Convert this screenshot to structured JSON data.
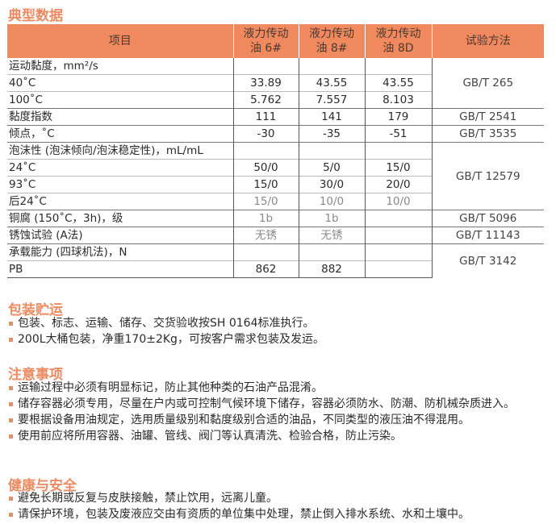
{
  "title": "典型数据",
  "table": {
    "headers": [
      "项目",
      "液力传动油 6#",
      "液力传动油 8#",
      "液力传动油 8D",
      "试验方法"
    ],
    "rows": [
      {
        "item": "运动黏度，mm²/s",
        "v": [
          "",
          "",
          ""
        ]
      },
      {
        "item": "40˚C",
        "v": [
          "33.89",
          "43.55",
          "43.55"
        ]
      },
      {
        "item": "100˚C",
        "v": [
          "5.762",
          "7.557",
          "8.103"
        ]
      },
      {
        "item": "黏度指数",
        "v": [
          "111",
          "141",
          "179"
        ]
      },
      {
        "item": "倾点，˚C",
        "v": [
          "-30",
          "-35",
          "-51"
        ]
      },
      {
        "item": "泡沫性 (泡沫倾向/泡沫稳定性)，mL/mL",
        "v": [
          "",
          "",
          ""
        ]
      },
      {
        "item": "24˚C",
        "v": [
          "50/0",
          "5/0",
          "15/0"
        ]
      },
      {
        "item": "93˚C",
        "v": [
          "15/0",
          "30/0",
          "20/0"
        ]
      },
      {
        "item": "后24˚C",
        "v": [
          "15/0",
          "10/0",
          "10/0"
        ]
      },
      {
        "item": "铜腐 (150˚C，3h)，级",
        "v": [
          "1b",
          "1b",
          ""
        ]
      },
      {
        "item": "锈蚀试验 (A法)",
        "v": [
          "无锈",
          "无锈",
          ""
        ]
      },
      {
        "item": "承载能力 (四球机法)，N",
        "v": [
          "",
          "",
          ""
        ]
      },
      {
        "item": "PB",
        "v": [
          "862",
          "882",
          ""
        ]
      }
    ],
    "methods": [
      "GB/T 265",
      "GB/T 2541",
      "GB/T 3535",
      "GB/T 12579",
      "GB/T 5096",
      "GB/T 11143",
      "GB/T 3142"
    ]
  },
  "sections": [
    {
      "title": "包装贮运",
      "items": [
        "包装、标志、运输、储存、交货验收按SH 0164标准执行。",
        "200L大桶包装，净重170±2Kg，可按客户需求包装及发运。"
      ]
    },
    {
      "title": "注意事项",
      "items": [
        "运输过程中必须有明显标记，防止其他种类的石油产品混淆。",
        "储存容器必须专用，尽量在户内或可控制气候环境下储存，容器必须防水、防潮、防机械杂质进入。",
        "要根据设备用油规定，选用质量级别和黏度级别合适的油品，不同类型的液压油不得混用。",
        "使用前应将所用容器、油罐、管线、阀门等认真清洗、检验合格，防止污染。"
      ]
    },
    {
      "title": "健康与安全",
      "items": [
        "避免长期或反复与皮肤接触，禁止饮用，远离儿童。",
        "请保护环境，包装及废液应交由有资质的单位集中处理，禁止倒入排水系统、水和土壤中。"
      ]
    }
  ],
  "colors": {
    "accent": "#ec8a62",
    "header_bg": "#f0895e"
  }
}
